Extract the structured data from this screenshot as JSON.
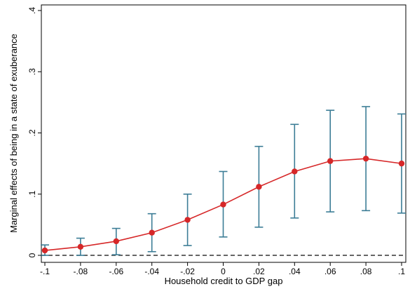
{
  "chart_data": {
    "type": "line",
    "title": "",
    "xlabel": "Household credit to GDP gap",
    "ylabel": "Marginal effects of being in a state of exuberance",
    "xlim": [
      -0.1,
      0.1
    ],
    "ylim": [
      0,
      0.4
    ],
    "x_ticks": [
      -0.1,
      -0.08,
      -0.06,
      -0.04,
      -0.02,
      0,
      0.02,
      0.04,
      0.06,
      0.08,
      0.1
    ],
    "x_tick_labels": [
      "-.1",
      "-.08",
      "-.06",
      "-.04",
      "-.02",
      "0",
      ".02",
      ".04",
      ".06",
      ".08",
      ".1"
    ],
    "y_ticks": [
      0,
      0.1,
      0.2,
      0.3,
      0.4
    ],
    "y_tick_labels": [
      "0",
      ".1",
      ".2",
      ".3",
      ".4"
    ],
    "reference_line": {
      "y": 0,
      "style": "dashed",
      "color": "#333333"
    },
    "grid": false,
    "legend": "none",
    "series": [
      {
        "type": "line-with-markers",
        "color": "#d62728",
        "x": [
          -0.1,
          -0.08,
          -0.06,
          -0.04,
          -0.02,
          0,
          0.02,
          0.04,
          0.06,
          0.08,
          0.1
        ],
        "y": [
          0.008,
          0.014,
          0.023,
          0.037,
          0.058,
          0.083,
          0.112,
          0.137,
          0.154,
          0.158,
          0.15
        ]
      }
    ],
    "error_bars": {
      "color": "#3c7d96",
      "lower": [
        0.0,
        0.0,
        0.001,
        0.006,
        0.016,
        0.03,
        0.046,
        0.061,
        0.071,
        0.073,
        0.069
      ],
      "upper": [
        0.017,
        0.028,
        0.044,
        0.068,
        0.1,
        0.137,
        0.178,
        0.214,
        0.237,
        0.243,
        0.231
      ]
    }
  }
}
